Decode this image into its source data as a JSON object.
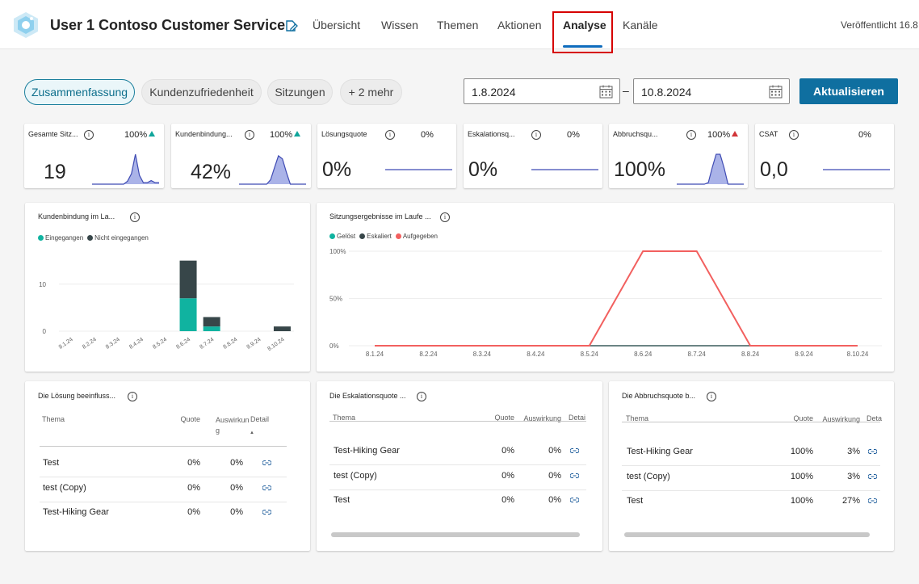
{
  "header": {
    "app_title": "User 1 Contoso Customer Service",
    "tabs": [
      {
        "label": "Übersicht"
      },
      {
        "label": "Wissen"
      },
      {
        "label": "Themen"
      },
      {
        "label": "Aktionen"
      },
      {
        "label": "Analyse"
      },
      {
        "label": "Kanäle"
      }
    ],
    "active_tab": "Analyse",
    "published": "Veröffentlicht 16.8"
  },
  "filters": {
    "pills": [
      {
        "label": "Zusammenfassung",
        "active": true
      },
      {
        "label": "Kundenzufriedenheit"
      },
      {
        "label": "Sitzungen"
      },
      {
        "label": "+ 2 mehr"
      }
    ],
    "date_from": "1.8.2024",
    "date_separator": "–",
    "date_to": "10.8.2024",
    "refresh_label": "Aktualisieren"
  },
  "kpis": [
    {
      "title": "Gesamte Sitz...",
      "pct": "100%",
      "trend": "up",
      "trend_color": "#10a59b",
      "value": "19",
      "spark": [
        0,
        0,
        0,
        0,
        0,
        0,
        0,
        0,
        0,
        0.1,
        0.35,
        1,
        0.3,
        0.05,
        0.05,
        0.12,
        0.05,
        0.05
      ]
    },
    {
      "title": "Kundenbindung...",
      "pct": "100%",
      "trend": "up",
      "trend_color": "#10a59b",
      "value": "42%",
      "spark": [
        0,
        0,
        0,
        0,
        0,
        0,
        0,
        0,
        0.15,
        0.55,
        0.95,
        0.85,
        0.4,
        0,
        0,
        0,
        0,
        0
      ]
    },
    {
      "title": "Lösungsquote",
      "pct": "0%",
      "trend": "none",
      "value": "0%",
      "spark": [
        0,
        0
      ]
    },
    {
      "title": "Eskalationsq...",
      "pct": "0%",
      "trend": "none",
      "value": "0%",
      "spark": [
        0,
        0
      ]
    },
    {
      "title": "Abbruchsqu...",
      "pct": "100%",
      "trend": "up",
      "trend_color": "#d13438",
      "value": "100%",
      "spark": [
        0,
        0,
        0,
        0,
        0,
        0,
        0,
        0,
        0.05,
        0.55,
        1,
        1,
        0.55,
        0,
        0,
        0,
        0,
        0
      ]
    },
    {
      "title": "CSAT",
      "pct": "0%",
      "trend": "none",
      "value": "0,0",
      "spark": [
        0,
        0
      ]
    }
  ],
  "engagement_chart": {
    "title": "Kundenbindung im La...",
    "legend": [
      {
        "name": "Eingegangen",
        "color": "#10b3a0"
      },
      {
        "name": "Nicht eingegangen",
        "color": "#374649"
      }
    ]
  },
  "outcome_chart": {
    "title": "Sitzungsergebnisse im Laufe ...",
    "legend": [
      {
        "name": "Gelöst",
        "color": "#10b3a0"
      },
      {
        "name": "Eskaliert",
        "color": "#374649"
      },
      {
        "name": "Aufgegeben",
        "color": "#f2605f"
      }
    ]
  },
  "chart_data": [
    {
      "type": "bar",
      "stacked": true,
      "categories": [
        "8.1.24",
        "8.2.24",
        "8.3.24",
        "8.4.24",
        "8.5.24",
        "8.6.24",
        "8.7.24",
        "8.8.24",
        "8.9.24",
        "8.10.24"
      ],
      "series": [
        {
          "name": "Eingegangen",
          "values": [
            0,
            0,
            0,
            0,
            0,
            7,
            1,
            0,
            0,
            0
          ]
        },
        {
          "name": "Nicht eingegangen",
          "values": [
            0,
            0,
            0,
            0,
            0,
            8,
            2,
            0,
            0,
            1
          ]
        }
      ],
      "yticks": [
        "0",
        "10"
      ],
      "ylim": [
        0,
        17
      ],
      "legend": "top-left"
    },
    {
      "type": "line",
      "categories": [
        "8.1.24",
        "8.2.24",
        "8.3.24",
        "8.4.24",
        "8.5.24",
        "8.6.24",
        "8.7.24",
        "8.8.24",
        "8.9.24",
        "8.10.24"
      ],
      "series": [
        {
          "name": "Gelöst",
          "values": [
            0,
            0,
            0,
            0,
            0,
            0,
            0,
            0,
            0,
            0
          ]
        },
        {
          "name": "Eskaliert",
          "values": [
            0,
            0,
            0,
            0,
            0,
            0,
            0,
            0,
            0,
            0
          ]
        },
        {
          "name": "Aufgegeben",
          "values": [
            0,
            0,
            0,
            0,
            0,
            100,
            100,
            0,
            0,
            0
          ]
        }
      ],
      "yticks": [
        "0%",
        "50%",
        "100%"
      ],
      "ylim": [
        0,
        100
      ],
      "legend": "top-left"
    }
  ],
  "tables": [
    {
      "title": "Die Lösung beeinfluss...",
      "headers": {
        "topic": "Thema",
        "rate": "Quote",
        "impact": "Auswirkun\ng",
        "detail": "Detail",
        "sort": "▲"
      },
      "rows": [
        {
          "topic": "Test",
          "rate": "0%",
          "impact": "0%"
        },
        {
          "topic": "test (Copy)",
          "rate": "0%",
          "impact": "0%"
        },
        {
          "topic": "Test-Hiking Gear",
          "rate": "0%",
          "impact": "0%"
        }
      ]
    },
    {
      "title": "Die Eskalationsquote ...",
      "headers": {
        "topic": "Thema",
        "rate": "Quote",
        "impact": "Auswirkung",
        "detail": "Detai"
      },
      "rows": [
        {
          "topic": "Test-Hiking Gear",
          "rate": "0%",
          "impact": "0%"
        },
        {
          "topic": "test (Copy)",
          "rate": "0%",
          "impact": "0%"
        },
        {
          "topic": "Test",
          "rate": "0%",
          "impact": "0%"
        }
      ]
    },
    {
      "title": "Die Abbruchsquote b...",
      "headers": {
        "topic": "Thema",
        "rate": "Quote",
        "impact": "Auswirkung",
        "detail": "Deta"
      },
      "rows": [
        {
          "topic": "Test-Hiking Gear",
          "rate": "100%",
          "impact": "3%"
        },
        {
          "topic": "test (Copy)",
          "rate": "100%",
          "impact": "3%"
        },
        {
          "topic": "Test",
          "rate": "100%",
          "impact": "27%"
        }
      ]
    }
  ]
}
